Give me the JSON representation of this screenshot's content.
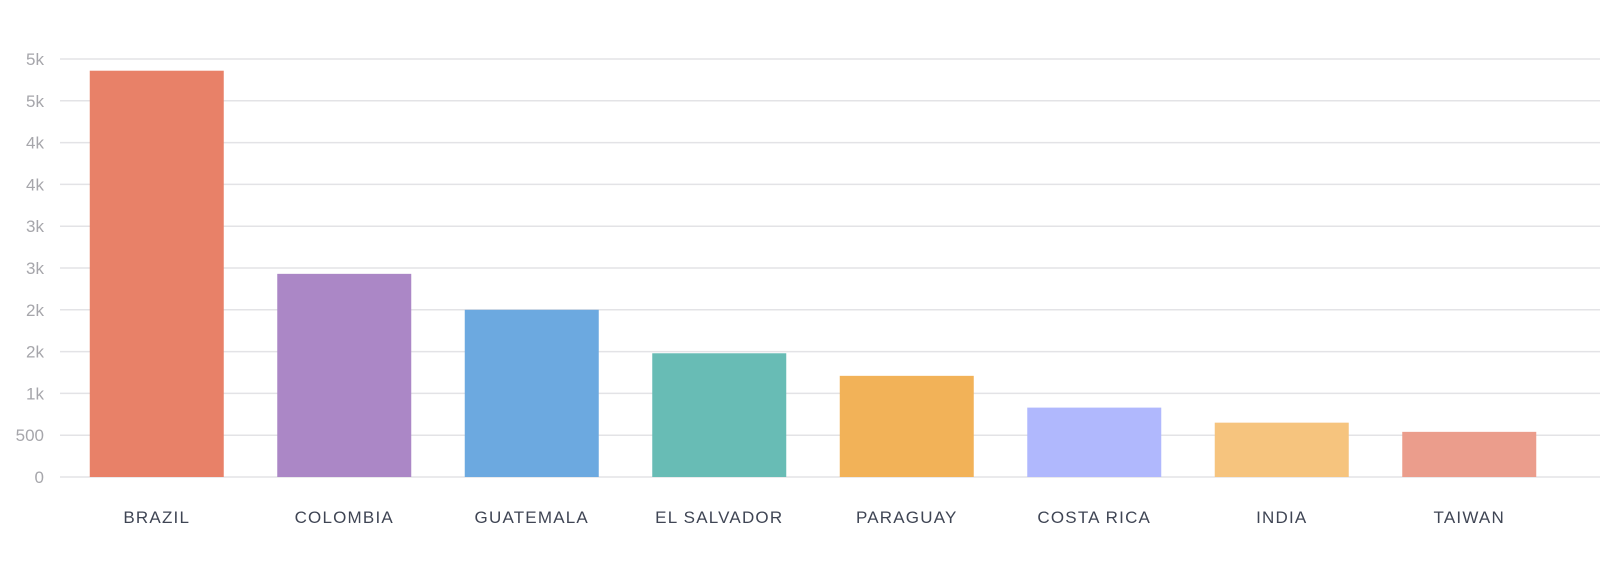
{
  "chart_data": {
    "type": "bar",
    "title": "",
    "xlabel": "",
    "ylabel": "",
    "grid": true,
    "ylim": [
      0,
      5000
    ],
    "y_tick_values": [
      0,
      500,
      1000,
      1500,
      2000,
      2500,
      3000,
      3500,
      4000,
      4500,
      5000
    ],
    "y_tick_labels": [
      "0",
      "500",
      "1k",
      "2k",
      "2k",
      "3k",
      "3k",
      "4k",
      "4k",
      "5k",
      "5k"
    ],
    "categories": [
      "BRAZIL",
      "COLOMBIA",
      "GUATEMALA",
      "EL SALVADOR",
      "PARAGUAY",
      "COSTA RICA",
      "INDIA",
      "TAIWAN"
    ],
    "values": [
      4860,
      2430,
      2000,
      1480,
      1210,
      830,
      650,
      540
    ],
    "colors": [
      "#e88168",
      "#ab87c6",
      "#6ca9e0",
      "#68bcb5",
      "#f2b258",
      "#b0b8fd",
      "#f6c47e",
      "#eb9d8c"
    ]
  }
}
